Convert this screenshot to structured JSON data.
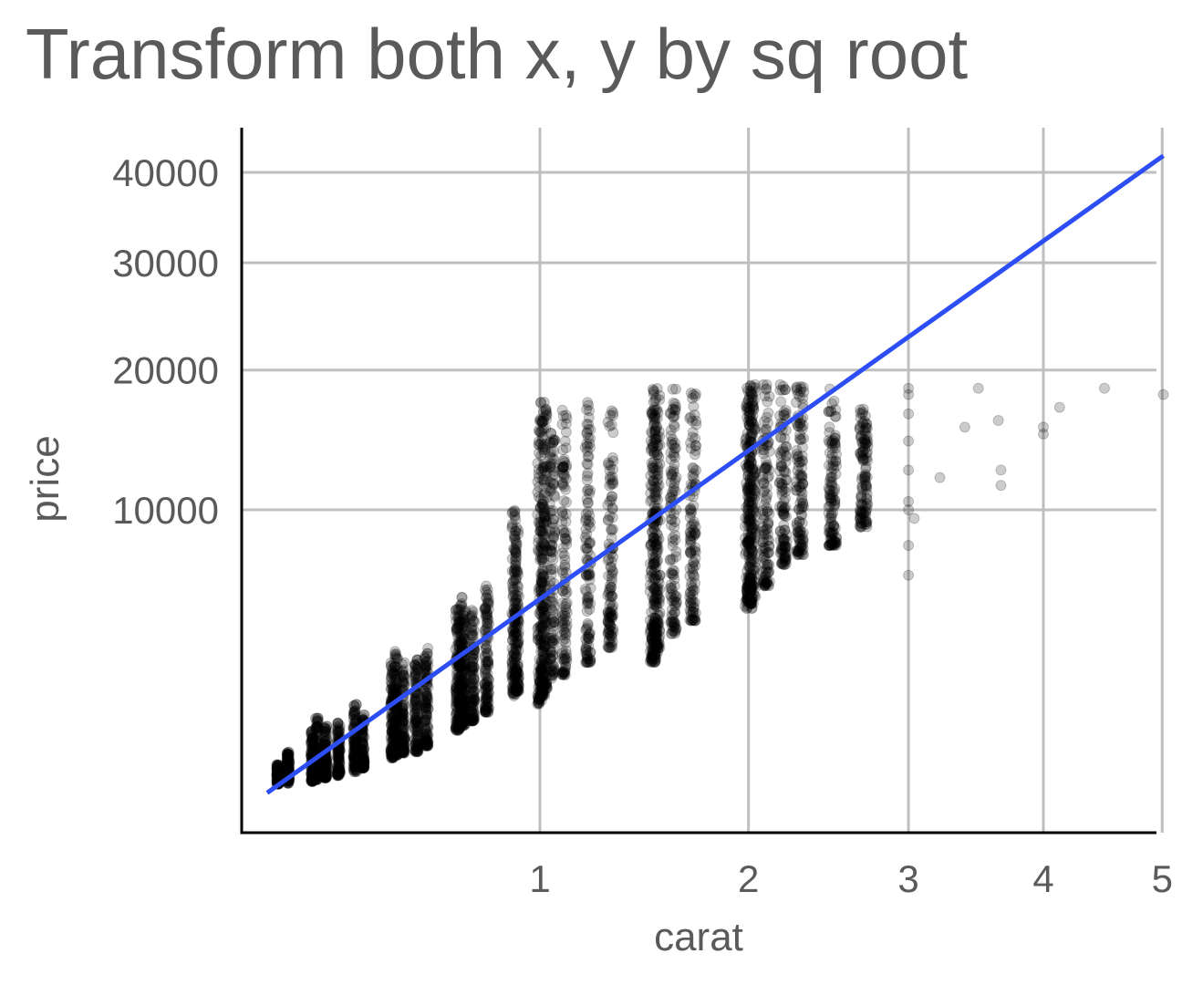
{
  "chart_data": {
    "type": "scatter",
    "title": "Transform both x, y by sq root",
    "xlabel": "carat",
    "ylabel": "price",
    "x_scale": "sqrt",
    "y_scale": "sqrt",
    "xlim": [
      0.2,
      5.01
    ],
    "ylim": [
      326,
      45000
    ],
    "x_ticks": [
      1,
      2,
      3,
      4,
      5
    ],
    "y_ticks": [
      10000,
      20000,
      30000,
      40000
    ],
    "x_tick_labels": [
      "1",
      "2",
      "3",
      "4",
      "5"
    ],
    "y_tick_labels": [
      "10000",
      "20000",
      "30000",
      "40000"
    ],
    "grid": true,
    "colors": {
      "points": "#000000",
      "fit_line": "#2c4ef4",
      "grid": "#bfbfbf",
      "axis": "#000000"
    },
    "point_opacity": 0.2,
    "series": [
      {
        "type": "points",
        "columns": [
          {
            "x": 0.23,
            "y_min": 350,
            "y_max": 600
          },
          {
            "x": 0.25,
            "y_min": 360,
            "y_max": 800
          },
          {
            "x": 0.3,
            "y_min": 380,
            "y_max": 1200
          },
          {
            "x": 0.31,
            "y_min": 400,
            "y_max": 1500
          },
          {
            "x": 0.33,
            "y_min": 420,
            "y_max": 1300
          },
          {
            "x": 0.36,
            "y_min": 450,
            "y_max": 1400
          },
          {
            "x": 0.4,
            "y_min": 500,
            "y_max": 1800
          },
          {
            "x": 0.42,
            "y_min": 550,
            "y_max": 1600
          },
          {
            "x": 0.5,
            "y_min": 700,
            "y_max": 3000
          },
          {
            "x": 0.51,
            "y_min": 750,
            "y_max": 3500
          },
          {
            "x": 0.53,
            "y_min": 780,
            "y_max": 3000
          },
          {
            "x": 0.57,
            "y_min": 800,
            "y_max": 3200
          },
          {
            "x": 0.6,
            "y_min": 900,
            "y_max": 3500
          },
          {
            "x": 0.7,
            "y_min": 1200,
            "y_max": 5000
          },
          {
            "x": 0.71,
            "y_min": 1300,
            "y_max": 5500
          },
          {
            "x": 0.72,
            "y_min": 1300,
            "y_max": 5000
          },
          {
            "x": 0.75,
            "y_min": 1400,
            "y_max": 5000
          },
          {
            "x": 0.8,
            "y_min": 1600,
            "y_max": 6000
          },
          {
            "x": 0.9,
            "y_min": 2000,
            "y_max": 10000
          },
          {
            "x": 0.91,
            "y_min": 2100,
            "y_max": 9000
          },
          {
            "x": 1.0,
            "y_min": 1800,
            "y_max": 16000
          },
          {
            "x": 1.01,
            "y_min": 2000,
            "y_max": 18000
          },
          {
            "x": 1.02,
            "y_min": 2200,
            "y_max": 17000
          },
          {
            "x": 1.05,
            "y_min": 2500,
            "y_max": 16000
          },
          {
            "x": 1.1,
            "y_min": 2600,
            "y_max": 17000
          },
          {
            "x": 1.2,
            "y_min": 3000,
            "y_max": 17500
          },
          {
            "x": 1.3,
            "y_min": 3500,
            "y_max": 17000
          },
          {
            "x": 1.5,
            "y_min": 3000,
            "y_max": 18500
          },
          {
            "x": 1.51,
            "y_min": 3200,
            "y_max": 18500
          },
          {
            "x": 1.52,
            "y_min": 3500,
            "y_max": 18000
          },
          {
            "x": 1.6,
            "y_min": 4000,
            "y_max": 18500
          },
          {
            "x": 1.7,
            "y_min": 4500,
            "y_max": 18500
          },
          {
            "x": 2.0,
            "y_min": 5000,
            "y_max": 18800
          },
          {
            "x": 2.01,
            "y_min": 5200,
            "y_max": 18800
          },
          {
            "x": 2.02,
            "y_min": 5500,
            "y_max": 18800
          },
          {
            "x": 2.1,
            "y_min": 6000,
            "y_max": 18800
          },
          {
            "x": 2.2,
            "y_min": 7000,
            "y_max": 18800
          },
          {
            "x": 2.3,
            "y_min": 7500,
            "y_max": 18800
          },
          {
            "x": 2.5,
            "y_min": 8000,
            "y_max": 18500
          },
          {
            "x": 2.7,
            "y_min": 9000,
            "y_max": 17000
          }
        ],
        "outliers": [
          {
            "x": 3.0,
            "y": 18500
          },
          {
            "x": 3.0,
            "y": 18000
          },
          {
            "x": 3.0,
            "y": 16500
          },
          {
            "x": 3.0,
            "y": 14500
          },
          {
            "x": 3.0,
            "y": 12500
          },
          {
            "x": 3.0,
            "y": 10500
          },
          {
            "x": 3.0,
            "y": 10000
          },
          {
            "x": 3.0,
            "y": 8000
          },
          {
            "x": 3.0,
            "y": 6500
          },
          {
            "x": 3.04,
            "y": 9500
          },
          {
            "x": 3.22,
            "y": 12000
          },
          {
            "x": 3.4,
            "y": 15500
          },
          {
            "x": 3.5,
            "y": 18500
          },
          {
            "x": 3.65,
            "y": 16000
          },
          {
            "x": 3.67,
            "y": 12500
          },
          {
            "x": 3.67,
            "y": 11500
          },
          {
            "x": 4.0,
            "y": 15500
          },
          {
            "x": 4.0,
            "y": 15000
          },
          {
            "x": 4.13,
            "y": 17000
          },
          {
            "x": 4.5,
            "y": 18500
          },
          {
            "x": 5.01,
            "y": 18000
          }
        ]
      },
      {
        "type": "line",
        "name": "",
        "points": [
          {
            "x": 0.21,
            "y": 260
          },
          {
            "x": 5.01,
            "y": 42000
          }
        ]
      }
    ]
  }
}
